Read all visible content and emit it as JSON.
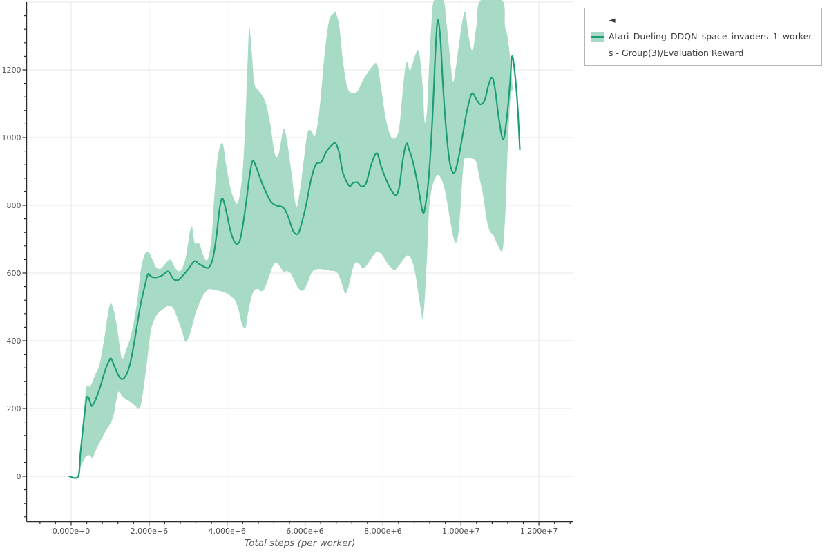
{
  "chart": {
    "type": "line",
    "subtype": "line-with-confidence-band",
    "xlabel": "Total steps (per worker)",
    "ylabel": "",
    "x_tick_labels": [
      "0.000e+0",
      "2.000e+6",
      "4.000e+6",
      "6.000e+6",
      "8.000e+6",
      "1.000e+7",
      "1.200e+7"
    ],
    "x_tick_values_millions": [
      0,
      2,
      4,
      6,
      8,
      10,
      12
    ],
    "y_tick_labels": [
      "0",
      "200",
      "400",
      "600",
      "800",
      "1000",
      "1200"
    ],
    "y_tick_values": [
      0,
      200,
      400,
      600,
      800,
      1000,
      1200
    ],
    "xlim_millions": [
      -1.15,
      12.88
    ],
    "ylim": [
      -133,
      1402
    ],
    "grid": true,
    "legend": {
      "position": "top-right",
      "label": "◄ Atari_Dueling_DDQN_space_invaders_1_workers - Group(3)/Evaluation Reward"
    },
    "colors": {
      "line": "#1b9e77",
      "band": "#a7dbc6",
      "grid": "#e7e7e7",
      "axis": "#2a2a2a",
      "tick_label": "#4d4d4d",
      "axis_title": "#555555",
      "legend_border": "#b5b5b5",
      "legend_text": "#3a3a3a",
      "background": "#ffffff"
    },
    "chart_data": {
      "type": "line",
      "series_name": "Atari_Dueling_DDQN_space_invaders_1_workers - Group(3)/Evaluation Reward",
      "x_unit": "millions of steps",
      "mean": [
        [
          -0.05,
          0
        ],
        [
          0.18,
          0
        ],
        [
          0.24,
          70
        ],
        [
          0.32,
          160
        ],
        [
          0.39,
          226
        ],
        [
          0.44,
          233
        ],
        [
          0.49,
          218
        ],
        [
          0.53,
          207
        ],
        [
          0.62,
          225
        ],
        [
          0.74,
          262
        ],
        [
          0.87,
          312
        ],
        [
          0.97,
          340
        ],
        [
          1.03,
          347
        ],
        [
          1.12,
          322
        ],
        [
          1.24,
          292
        ],
        [
          1.33,
          287
        ],
        [
          1.42,
          301
        ],
        [
          1.51,
          331
        ],
        [
          1.6,
          383
        ],
        [
          1.7,
          452
        ],
        [
          1.79,
          512
        ],
        [
          1.9,
          567
        ],
        [
          1.97,
          597
        ],
        [
          2.04,
          591
        ],
        [
          2.13,
          587
        ],
        [
          2.3,
          591
        ],
        [
          2.41,
          600
        ],
        [
          2.5,
          604
        ],
        [
          2.63,
          582
        ],
        [
          2.75,
          580
        ],
        [
          2.87,
          593
        ],
        [
          3.0,
          611
        ],
        [
          3.16,
          635
        ],
        [
          3.28,
          627
        ],
        [
          3.46,
          616
        ],
        [
          3.55,
          619
        ],
        [
          3.64,
          646
        ],
        [
          3.73,
          712
        ],
        [
          3.81,
          792
        ],
        [
          3.88,
          820
        ],
        [
          3.97,
          787
        ],
        [
          4.08,
          728
        ],
        [
          4.17,
          697
        ],
        [
          4.26,
          686
        ],
        [
          4.35,
          706
        ],
        [
          4.47,
          792
        ],
        [
          4.57,
          882
        ],
        [
          4.65,
          930
        ],
        [
          4.74,
          915
        ],
        [
          4.87,
          873
        ],
        [
          5.0,
          838
        ],
        [
          5.13,
          810
        ],
        [
          5.27,
          799
        ],
        [
          5.4,
          796
        ],
        [
          5.49,
          786
        ],
        [
          5.58,
          762
        ],
        [
          5.7,
          723
        ],
        [
          5.82,
          716
        ],
        [
          5.91,
          746
        ],
        [
          6.03,
          802
        ],
        [
          6.15,
          874
        ],
        [
          6.28,
          921
        ],
        [
          6.42,
          928
        ],
        [
          6.54,
          957
        ],
        [
          6.7,
          979
        ],
        [
          6.79,
          982
        ],
        [
          6.88,
          953
        ],
        [
          6.97,
          897
        ],
        [
          7.13,
          858
        ],
        [
          7.23,
          866
        ],
        [
          7.34,
          868
        ],
        [
          7.45,
          856
        ],
        [
          7.57,
          866
        ],
        [
          7.7,
          921
        ],
        [
          7.84,
          954
        ],
        [
          7.95,
          916
        ],
        [
          8.07,
          879
        ],
        [
          8.2,
          847
        ],
        [
          8.33,
          830
        ],
        [
          8.42,
          856
        ],
        [
          8.51,
          936
        ],
        [
          8.6,
          982
        ],
        [
          8.67,
          964
        ],
        [
          8.78,
          923
        ],
        [
          8.92,
          843
        ],
        [
          9.02,
          780
        ],
        [
          9.09,
          801
        ],
        [
          9.18,
          892
        ],
        [
          9.27,
          1062
        ],
        [
          9.34,
          1240
        ],
        [
          9.4,
          1345
        ],
        [
          9.47,
          1296
        ],
        [
          9.54,
          1152
        ],
        [
          9.62,
          1024
        ],
        [
          9.71,
          928
        ],
        [
          9.82,
          895
        ],
        [
          9.93,
          936
        ],
        [
          10.05,
          1012
        ],
        [
          10.16,
          1082
        ],
        [
          10.28,
          1130
        ],
        [
          10.39,
          1114
        ],
        [
          10.5,
          1098
        ],
        [
          10.61,
          1111
        ],
        [
          10.7,
          1152
        ],
        [
          10.8,
          1177
        ],
        [
          10.88,
          1139
        ],
        [
          10.97,
          1058
        ],
        [
          11.08,
          995
        ],
        [
          11.17,
          1052
        ],
        [
          11.26,
          1162
        ],
        [
          11.31,
          1240
        ],
        [
          11.38,
          1193
        ],
        [
          11.45,
          1098
        ],
        [
          11.51,
          965
        ]
      ],
      "band_upper": [
        [
          0.18,
          5
        ],
        [
          0.25,
          95
        ],
        [
          0.32,
          185
        ],
        [
          0.39,
          262
        ],
        [
          0.49,
          266
        ],
        [
          0.62,
          300
        ],
        [
          0.74,
          336
        ],
        [
          0.87,
          422
        ],
        [
          0.97,
          497
        ],
        [
          1.05,
          507
        ],
        [
          1.15,
          458
        ],
        [
          1.24,
          388
        ],
        [
          1.31,
          345
        ],
        [
          1.42,
          376
        ],
        [
          1.51,
          406
        ],
        [
          1.6,
          452
        ],
        [
          1.7,
          522
        ],
        [
          1.79,
          612
        ],
        [
          1.9,
          658
        ],
        [
          2.0,
          660
        ],
        [
          2.09,
          639
        ],
        [
          2.18,
          617
        ],
        [
          2.3,
          613
        ],
        [
          2.42,
          628
        ],
        [
          2.55,
          640
        ],
        [
          2.66,
          617
        ],
        [
          2.79,
          606
        ],
        [
          2.93,
          641
        ],
        [
          3.08,
          737
        ],
        [
          3.17,
          689
        ],
        [
          3.28,
          688
        ],
        [
          3.4,
          650
        ],
        [
          3.5,
          640
        ],
        [
          3.6,
          702
        ],
        [
          3.67,
          822
        ],
        [
          3.76,
          942
        ],
        [
          3.88,
          984
        ],
        [
          3.97,
          924
        ],
        [
          4.08,
          854
        ],
        [
          4.21,
          810
        ],
        [
          4.3,
          816
        ],
        [
          4.4,
          902
        ],
        [
          4.47,
          1052
        ],
        [
          4.53,
          1232
        ],
        [
          4.57,
          1326
        ],
        [
          4.63,
          1258
        ],
        [
          4.7,
          1160
        ],
        [
          4.8,
          1140
        ],
        [
          4.9,
          1124
        ],
        [
          5.0,
          1099
        ],
        [
          5.11,
          1038
        ],
        [
          5.22,
          954
        ],
        [
          5.32,
          950
        ],
        [
          5.45,
          1025
        ],
        [
          5.54,
          988
        ],
        [
          5.65,
          898
        ],
        [
          5.77,
          798
        ],
        [
          5.86,
          836
        ],
        [
          5.96,
          926
        ],
        [
          6.06,
          1012
        ],
        [
          6.15,
          1021
        ],
        [
          6.26,
          1006
        ],
        [
          6.37,
          1082
        ],
        [
          6.49,
          1232
        ],
        [
          6.61,
          1342
        ],
        [
          6.74,
          1368
        ],
        [
          6.79,
          1369
        ],
        [
          6.88,
          1328
        ],
        [
          6.97,
          1228
        ],
        [
          7.08,
          1150
        ],
        [
          7.2,
          1132
        ],
        [
          7.34,
          1136
        ],
        [
          7.48,
          1168
        ],
        [
          7.66,
          1200
        ],
        [
          7.84,
          1218
        ],
        [
          7.95,
          1148
        ],
        [
          8.07,
          1058
        ],
        [
          8.2,
          1004
        ],
        [
          8.33,
          1000
        ],
        [
          8.42,
          1032
        ],
        [
          8.51,
          1142
        ],
        [
          8.6,
          1222
        ],
        [
          8.69,
          1198
        ],
        [
          8.78,
          1226
        ],
        [
          8.88,
          1257
        ],
        [
          8.95,
          1234
        ],
        [
          9.02,
          1148
        ],
        [
          9.07,
          1046
        ],
        [
          9.13,
          1082
        ],
        [
          9.18,
          1202
        ],
        [
          9.24,
          1332
        ],
        [
          9.31,
          1405
        ],
        [
          9.55,
          1405
        ],
        [
          9.63,
          1338
        ],
        [
          9.71,
          1248
        ],
        [
          9.8,
          1165
        ],
        [
          9.91,
          1242
        ],
        [
          10.02,
          1332
        ],
        [
          10.11,
          1370
        ],
        [
          10.2,
          1298
        ],
        [
          10.3,
          1258
        ],
        [
          10.4,
          1332
        ],
        [
          10.5,
          1405
        ],
        [
          11.06,
          1405
        ],
        [
          11.13,
          1330
        ],
        [
          11.2,
          1294
        ],
        [
          11.28,
          1216
        ],
        [
          11.31,
          1172
        ],
        [
          11.33,
          1140
        ]
      ],
      "band_lower": [
        [
          0.18,
          0
        ],
        [
          0.24,
          28
        ],
        [
          0.32,
          46
        ],
        [
          0.39,
          60
        ],
        [
          0.48,
          62
        ],
        [
          0.55,
          55
        ],
        [
          0.67,
          86
        ],
        [
          0.78,
          110
        ],
        [
          0.9,
          136
        ],
        [
          1.03,
          161
        ],
        [
          1.1,
          186
        ],
        [
          1.16,
          226
        ],
        [
          1.22,
          250
        ],
        [
          1.33,
          233
        ],
        [
          1.47,
          224
        ],
        [
          1.6,
          212
        ],
        [
          1.72,
          201
        ],
        [
          1.79,
          212
        ],
        [
          1.86,
          262
        ],
        [
          1.95,
          342
        ],
        [
          2.04,
          426
        ],
        [
          2.13,
          462
        ],
        [
          2.22,
          480
        ],
        [
          2.32,
          490
        ],
        [
          2.43,
          500
        ],
        [
          2.54,
          503
        ],
        [
          2.63,
          494
        ],
        [
          2.72,
          469
        ],
        [
          2.84,
          430
        ],
        [
          2.93,
          397
        ],
        [
          3.02,
          411
        ],
        [
          3.1,
          441
        ],
        [
          3.19,
          481
        ],
        [
          3.28,
          508
        ],
        [
          3.37,
          531
        ],
        [
          3.46,
          546
        ],
        [
          3.55,
          553
        ],
        [
          3.67,
          550
        ],
        [
          3.78,
          548
        ],
        [
          3.9,
          544
        ],
        [
          4.01,
          539
        ],
        [
          4.12,
          529
        ],
        [
          4.21,
          518
        ],
        [
          4.3,
          489
        ],
        [
          4.38,
          450
        ],
        [
          4.47,
          437
        ],
        [
          4.52,
          470
        ],
        [
          4.59,
          512
        ],
        [
          4.68,
          546
        ],
        [
          4.79,
          553
        ],
        [
          4.88,
          546
        ],
        [
          4.97,
          556
        ],
        [
          5.08,
          591
        ],
        [
          5.18,
          622
        ],
        [
          5.27,
          631
        ],
        [
          5.36,
          619
        ],
        [
          5.45,
          604
        ],
        [
          5.54,
          606
        ],
        [
          5.63,
          599
        ],
        [
          5.72,
          579
        ],
        [
          5.81,
          559
        ],
        [
          5.9,
          548
        ],
        [
          5.99,
          553
        ],
        [
          6.08,
          576
        ],
        [
          6.17,
          601
        ],
        [
          6.26,
          610
        ],
        [
          6.39,
          612
        ],
        [
          6.52,
          610
        ],
        [
          6.65,
          607
        ],
        [
          6.79,
          604
        ],
        [
          6.88,
          589
        ],
        [
          6.97,
          559
        ],
        [
          7.04,
          539
        ],
        [
          7.13,
          566
        ],
        [
          7.22,
          611
        ],
        [
          7.3,
          631
        ],
        [
          7.39,
          627
        ],
        [
          7.48,
          614
        ],
        [
          7.57,
          621
        ],
        [
          7.66,
          636
        ],
        [
          7.75,
          651
        ],
        [
          7.84,
          663
        ],
        [
          7.93,
          659
        ],
        [
          8.02,
          647
        ],
        [
          8.11,
          629
        ],
        [
          8.2,
          617
        ],
        [
          8.29,
          609
        ],
        [
          8.38,
          618
        ],
        [
          8.47,
          631
        ],
        [
          8.56,
          646
        ],
        [
          8.65,
          652
        ],
        [
          8.74,
          638
        ],
        [
          8.83,
          598
        ],
        [
          8.9,
          544
        ],
        [
          8.97,
          494
        ],
        [
          9.02,
          466
        ],
        [
          9.07,
          522
        ],
        [
          9.13,
          652
        ],
        [
          9.18,
          782
        ],
        [
          9.24,
          842
        ],
        [
          9.31,
          872
        ],
        [
          9.4,
          890
        ],
        [
          9.49,
          879
        ],
        [
          9.57,
          853
        ],
        [
          9.64,
          813
        ],
        [
          9.72,
          758
        ],
        [
          9.8,
          708
        ],
        [
          9.88,
          690
        ],
        [
          9.95,
          732
        ],
        [
          10.02,
          852
        ],
        [
          10.08,
          932
        ],
        [
          10.16,
          938
        ],
        [
          10.28,
          938
        ],
        [
          10.39,
          928
        ],
        [
          10.48,
          878
        ],
        [
          10.57,
          828
        ],
        [
          10.66,
          758
        ],
        [
          10.74,
          724
        ],
        [
          10.83,
          712
        ],
        [
          10.92,
          688
        ],
        [
          11.01,
          668
        ],
        [
          11.06,
          665
        ],
        [
          11.1,
          702
        ],
        [
          11.15,
          802
        ],
        [
          11.19,
          941
        ],
        [
          11.24,
          1062
        ],
        [
          11.28,
          1130
        ],
        [
          11.33,
          1140
        ]
      ]
    }
  }
}
